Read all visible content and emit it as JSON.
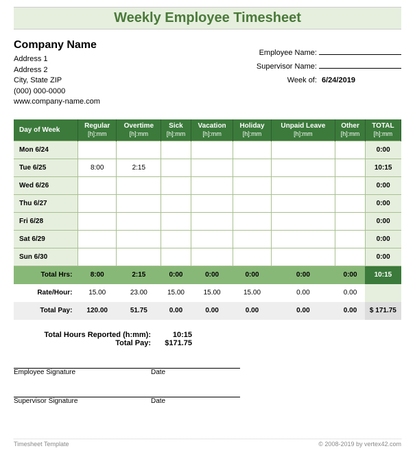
{
  "title": "Weekly Employee Timesheet",
  "company": {
    "name": "Company Name",
    "addr1": "Address 1",
    "addr2": "Address 2",
    "citystate": "City, State  ZIP",
    "phone": "(000) 000-0000",
    "web": "www.company-name.com"
  },
  "form": {
    "emp_label": "Employee Name:",
    "emp_value": "",
    "sup_label": "Supervisor Name:",
    "sup_value": "",
    "week_label": "Week of:",
    "week_value": "6/24/2019"
  },
  "table": {
    "headers": {
      "day": "Day of Week",
      "regular": "Regular",
      "overtime": "Overtime",
      "sick": "Sick",
      "vacation": "Vacation",
      "holiday": "Holiday",
      "unpaid": "Unpaid Leave",
      "other": "Other",
      "total": "TOTAL",
      "sub": "[h]:mm"
    },
    "rows": [
      {
        "day": "Mon 6/24",
        "reg": "",
        "ot": "",
        "sick": "",
        "vac": "",
        "hol": "",
        "unp": "",
        "oth": "",
        "tot": "0:00"
      },
      {
        "day": "Tue 6/25",
        "reg": "8:00",
        "ot": "2:15",
        "sick": "",
        "vac": "",
        "hol": "",
        "unp": "",
        "oth": "",
        "tot": "10:15"
      },
      {
        "day": "Wed 6/26",
        "reg": "",
        "ot": "",
        "sick": "",
        "vac": "",
        "hol": "",
        "unp": "",
        "oth": "",
        "tot": "0:00"
      },
      {
        "day": "Thu 6/27",
        "reg": "",
        "ot": "",
        "sick": "",
        "vac": "",
        "hol": "",
        "unp": "",
        "oth": "",
        "tot": "0:00"
      },
      {
        "day": "Fri 6/28",
        "reg": "",
        "ot": "",
        "sick": "",
        "vac": "",
        "hol": "",
        "unp": "",
        "oth": "",
        "tot": "0:00"
      },
      {
        "day": "Sat 6/29",
        "reg": "",
        "ot": "",
        "sick": "",
        "vac": "",
        "hol": "",
        "unp": "",
        "oth": "",
        "tot": "0:00"
      },
      {
        "day": "Sun 6/30",
        "reg": "",
        "ot": "",
        "sick": "",
        "vac": "",
        "hol": "",
        "unp": "",
        "oth": "",
        "tot": "0:00"
      }
    ],
    "totals_hrs": {
      "label": "Total Hrs:",
      "reg": "8:00",
      "ot": "2:15",
      "sick": "0:00",
      "vac": "0:00",
      "hol": "0:00",
      "unp": "0:00",
      "oth": "0:00",
      "tot": "10:15"
    },
    "rate": {
      "label": "Rate/Hour:",
      "reg": "15.00",
      "ot": "23.00",
      "sick": "15.00",
      "vac": "15.00",
      "hol": "15.00",
      "unp": "0.00",
      "oth": "0.00",
      "tot": ""
    },
    "pay": {
      "label": "Total Pay:",
      "reg": "120.00",
      "ot": "51.75",
      "sick": "0.00",
      "vac": "0.00",
      "hol": "0.00",
      "unp": "0.00",
      "oth": "0.00",
      "tot": "$   171.75"
    }
  },
  "summary": {
    "hrs_label": "Total Hours Reported (h:mm):",
    "hrs_value": "10:15",
    "pay_label": "Total Pay:",
    "pay_value": "$171.75"
  },
  "signatures": {
    "emp": "Employee Signature",
    "sup": "Supervisor Signature",
    "date": "Date"
  },
  "footer": {
    "left": "Timesheet Template",
    "right": "© 2008-2019 by vertex42.com"
  },
  "colors": {
    "banner_bg": "#e6efde",
    "title_color": "#4a7a3a",
    "header_bg": "#3b7a3b",
    "row_label_bg": "#e6efde",
    "totals_bg": "#88b878",
    "grand_total_bg": "#3b7a3b",
    "border": "#a8c090",
    "pay_bg": "#eee"
  }
}
